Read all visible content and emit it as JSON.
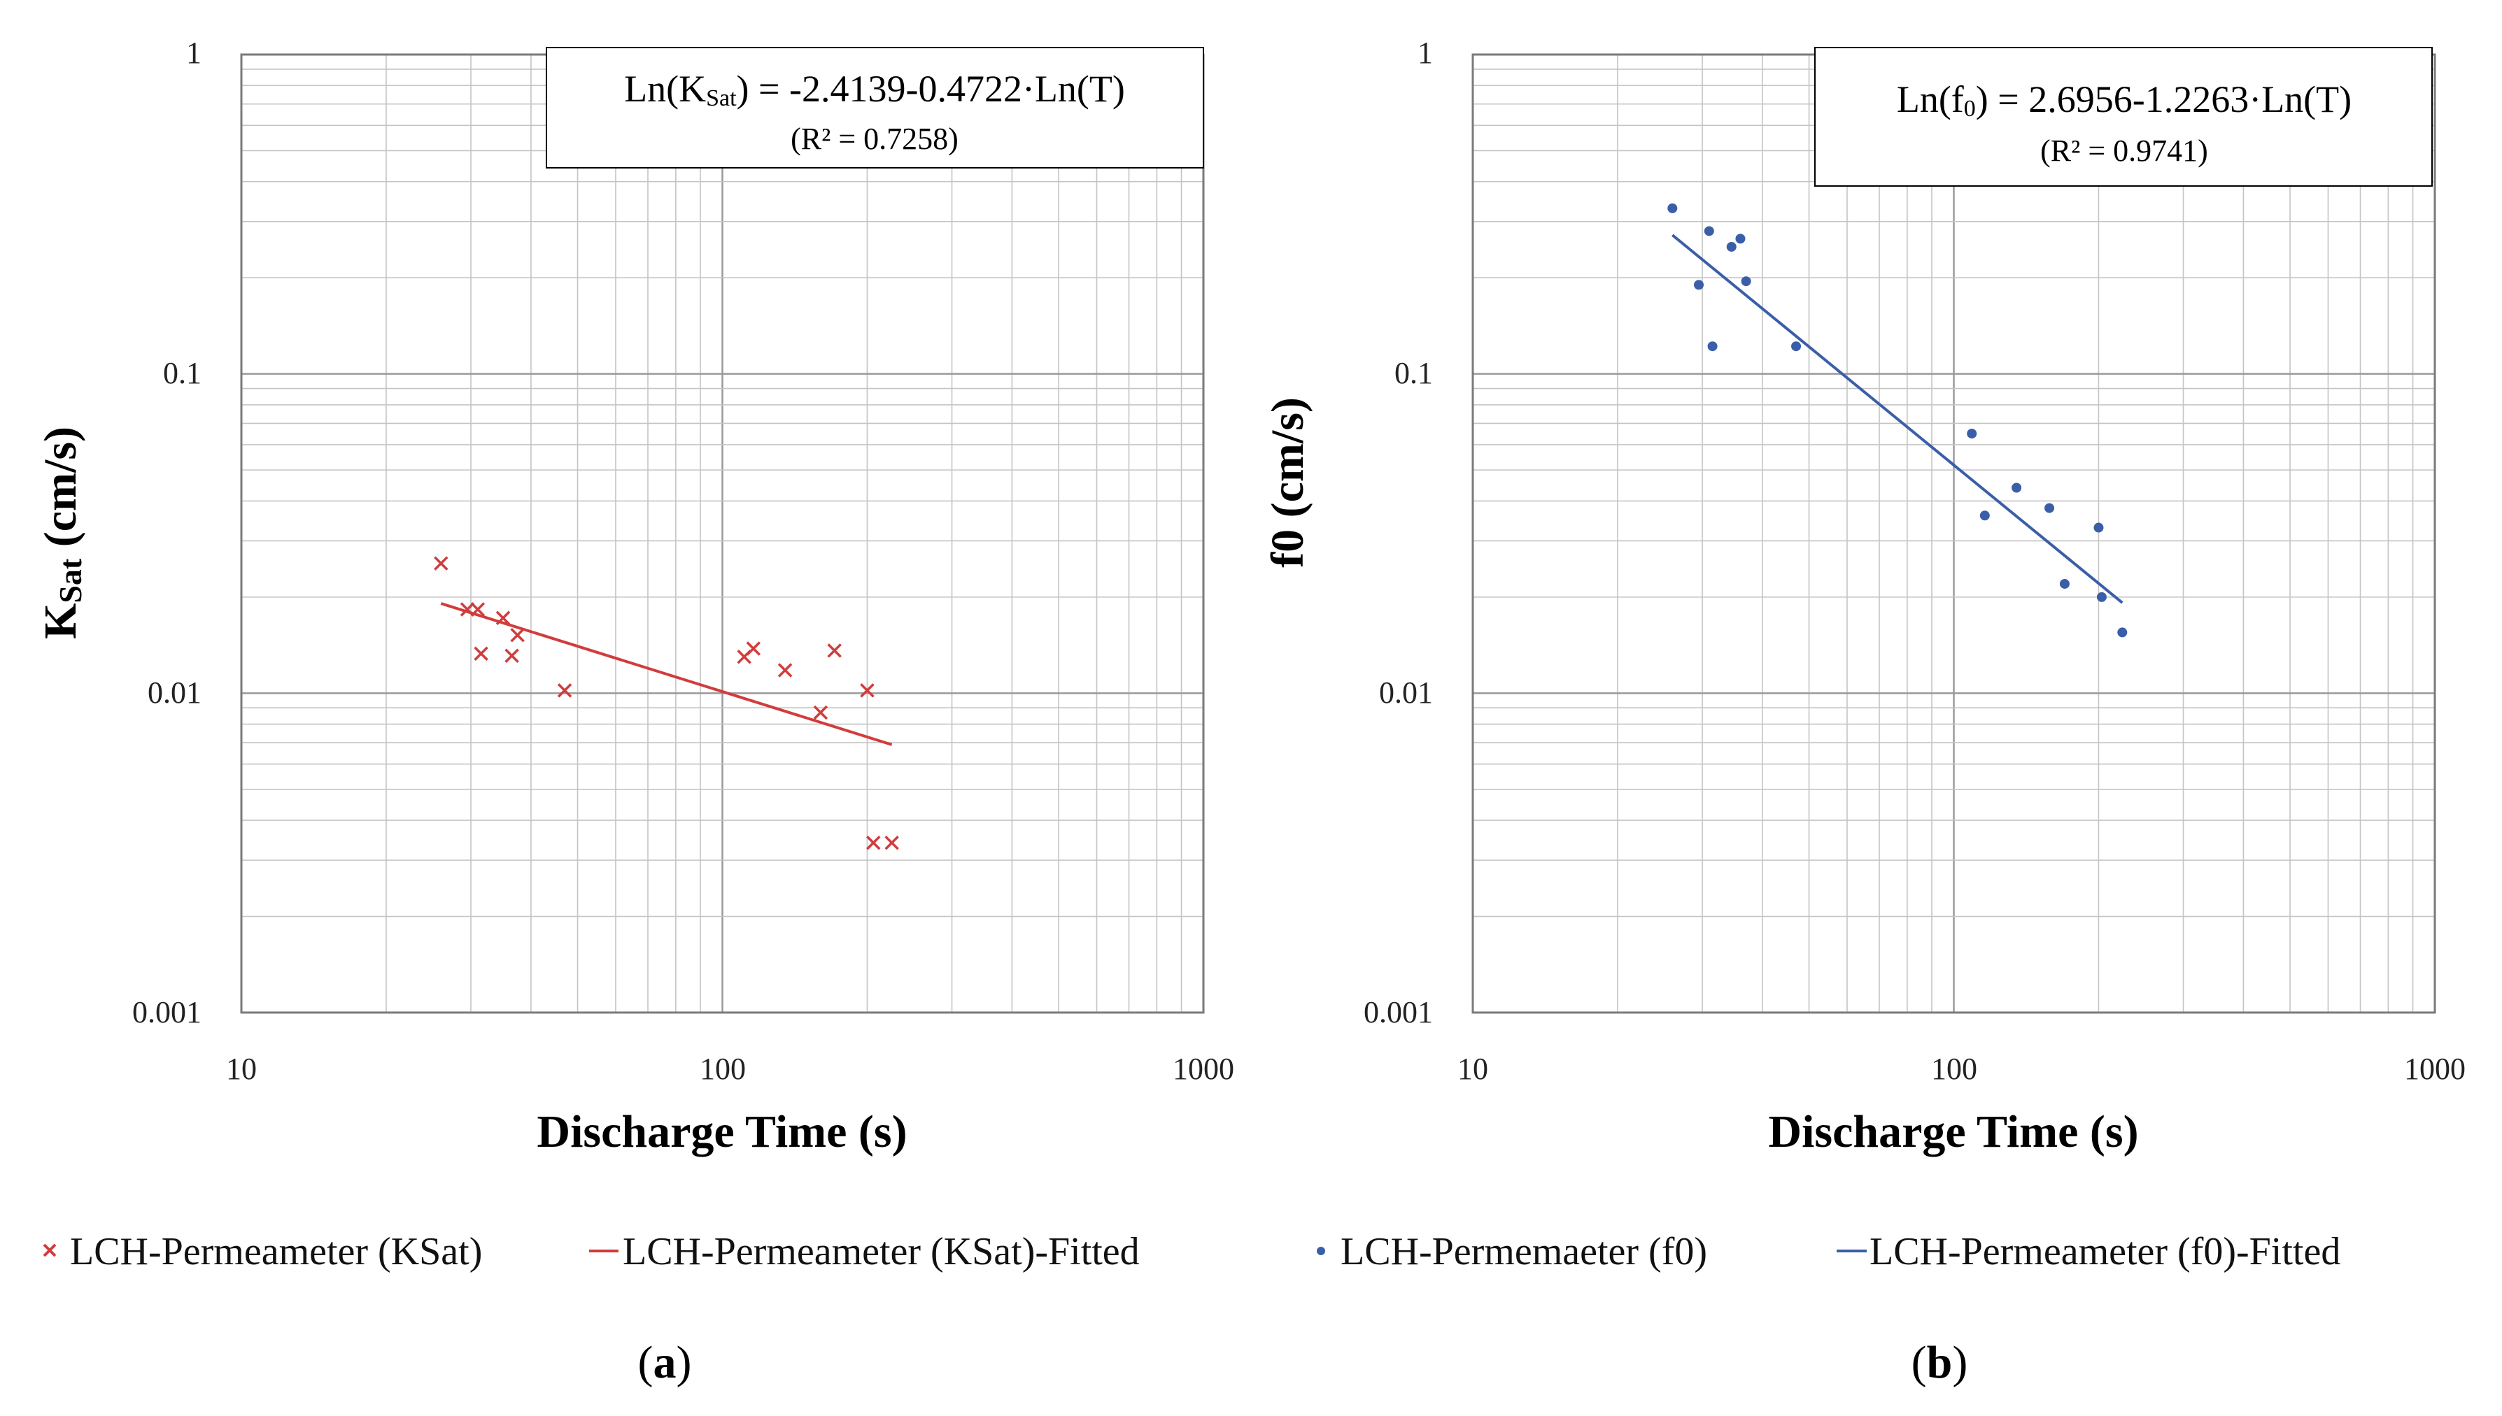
{
  "colors": {
    "red": "#d13c3c",
    "blue": "#3b5ea8",
    "grid": "#c4c4c4",
    "axis": "#7a7a7a"
  },
  "x_ticks": [
    "10",
    "100",
    "1000"
  ],
  "y_ticks": [
    "1",
    "0.1",
    "0.01",
    "0.001"
  ],
  "chart_data": [
    {
      "type": "scatter",
      "panel_label": {
        "open": "(",
        "letter": "a",
        "close": ")"
      },
      "xlabel": "Discharge Time (s)",
      "ylabel": {
        "main": "K",
        "sub": "Sat",
        "rest": " (cm/s)"
      },
      "xscale": "log",
      "yscale": "log",
      "xlim": [
        10,
        1000
      ],
      "ylim": [
        0.001,
        1
      ],
      "grid": true,
      "equation": {
        "pre": "Ln(K",
        "sub": "Sat",
        "post": ") = -2.4139-0.4722·Ln(T)",
        "r2": "(R² = 0.7258)"
      },
      "series": [
        {
          "name": "LCH-Permeameter (KSat)",
          "marker": "x",
          "x": [
            26,
            29.5,
            31,
            31.5,
            35,
            36.5,
            37.5,
            47,
            111,
            116,
            135,
            160,
            171,
            200,
            206,
            225
          ],
          "y": [
            0.0255,
            0.0183,
            0.0183,
            0.0133,
            0.0172,
            0.0131,
            0.0152,
            0.0102,
            0.013,
            0.0138,
            0.0118,
            0.0087,
            0.0136,
            0.0102,
            0.0034,
            0.0034
          ]
        },
        {
          "name": "LCH-Permeameter (KSat)-Fitted",
          "marker": "line",
          "x": [
            26,
            225
          ],
          "y": [
            0.0191,
            0.0069
          ]
        }
      ]
    },
    {
      "type": "scatter",
      "panel_label": {
        "open": "(",
        "letter": "b",
        "close": ")"
      },
      "xlabel": "Discharge Time (s)",
      "ylabel": {
        "main": "f",
        "sub": "0",
        "rest": " (cm/s)"
      },
      "xscale": "log",
      "yscale": "log",
      "xlim": [
        10,
        1000
      ],
      "ylim": [
        0.001,
        1
      ],
      "grid": true,
      "equation": {
        "pre": "Ln(f",
        "sub": "0",
        "post": ") = 2.6956-1.2263·Ln(T)",
        "r2": "(R² = 0.9741)"
      },
      "series": [
        {
          "name": "LCH-Permemaeter (f0)",
          "marker": "dot",
          "x": [
            26,
            29.5,
            31,
            31.5,
            34.5,
            36,
            37,
            47,
            109,
            116,
            135,
            158,
            170,
            200,
            203,
            224
          ],
          "y": [
            0.33,
            0.19,
            0.28,
            0.122,
            0.25,
            0.265,
            0.195,
            0.122,
            0.065,
            0.036,
            0.044,
            0.038,
            0.022,
            0.033,
            0.02,
            0.0155
          ]
        },
        {
          "name": "LCH-Permeameter (f0)-Fitted",
          "marker": "line",
          "x": [
            26,
            224
          ],
          "y": [
            0.272,
            0.0192
          ]
        }
      ]
    }
  ]
}
